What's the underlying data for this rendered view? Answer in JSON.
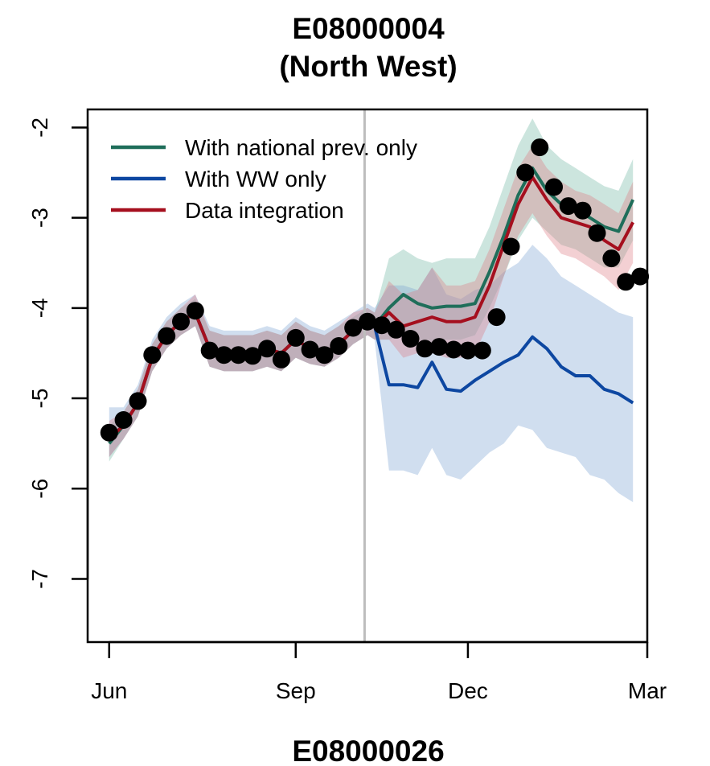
{
  "chart_data": {
    "type": "line",
    "title_line1": "E08000004",
    "title_line2": "(North West)",
    "next_panel_title": "E08000026",
    "xlabel": "",
    "ylabel": "",
    "x_ticks": [
      {
        "label": "Jun",
        "week": 0
      },
      {
        "label": "Sep",
        "week": 13
      },
      {
        "label": "Dec",
        "week": 25
      },
      {
        "label": "Mar",
        "week": 37.5
      }
    ],
    "y_ticks": [
      -7,
      -6,
      -5,
      -4,
      -3,
      -2
    ],
    "y_tick_labels": [
      "-7",
      "-6",
      "-5",
      "-4",
      "-3",
      "-2"
    ],
    "xlim": [
      -1.5,
      37.5
    ],
    "ylim": [
      -7.7,
      -1.8
    ],
    "forecast_start_week": 17.8,
    "forecast_line_color": "#bdbdbd",
    "legend_position": "top-left",
    "series": [
      {
        "name": "With national prev. only",
        "color": "#1f6e5a",
        "band_color": "rgba(110,180,160,0.35)",
        "x": [
          0,
          1,
          2,
          3,
          4,
          5,
          6,
          7,
          8,
          9,
          10,
          11,
          12,
          13,
          14,
          15,
          16,
          17,
          18,
          18.5,
          19.5,
          20.5,
          21.5,
          22.5,
          23.5,
          24.5,
          25.5,
          26.5,
          27.5,
          28.5,
          29.5,
          30.5,
          31.5,
          32.5,
          33.5,
          34.5,
          35.5,
          36.5
        ],
        "values": [
          -5.5,
          -5.3,
          -5.05,
          -4.55,
          -4.3,
          -4.15,
          -4.05,
          -4.45,
          -4.5,
          -4.5,
          -4.5,
          -4.45,
          -4.5,
          -4.35,
          -4.45,
          -4.5,
          -4.4,
          -4.25,
          -4.15,
          -4.2,
          -4.0,
          -3.85,
          -3.95,
          -4.0,
          -3.98,
          -3.98,
          -3.95,
          -3.6,
          -3.2,
          -2.75,
          -2.45,
          -2.7,
          -2.85,
          -2.9,
          -3.0,
          -3.1,
          -3.15,
          -2.8
        ],
        "lower": [
          -5.7,
          -5.45,
          -5.2,
          -4.7,
          -4.45,
          -4.3,
          -4.2,
          -4.65,
          -4.7,
          -4.7,
          -4.7,
          -4.65,
          -4.7,
          -4.55,
          -4.62,
          -4.65,
          -4.55,
          -4.4,
          -4.3,
          -4.35,
          -4.35,
          -4.3,
          -4.35,
          -4.4,
          -4.35,
          -4.35,
          -4.3,
          -4.0,
          -3.65,
          -3.25,
          -3.0,
          -3.15,
          -3.3,
          -3.35,
          -3.45,
          -3.55,
          -3.55,
          -3.25
        ],
        "upper": [
          -5.3,
          -5.15,
          -4.9,
          -4.4,
          -4.15,
          -4.0,
          -3.9,
          -4.25,
          -4.3,
          -4.3,
          -4.3,
          -4.25,
          -4.3,
          -4.15,
          -4.25,
          -4.3,
          -4.2,
          -4.1,
          -4.0,
          -4.05,
          -3.45,
          -3.35,
          -3.45,
          -3.5,
          -3.45,
          -3.45,
          -3.45,
          -3.1,
          -2.65,
          -2.2,
          -1.9,
          -2.2,
          -2.35,
          -2.45,
          -2.55,
          -2.65,
          -2.7,
          -2.35
        ]
      },
      {
        "name": "With WW only",
        "color": "#0d47a1",
        "band_color": "rgba(120,160,210,0.35)",
        "x": [
          0,
          1,
          2,
          3,
          4,
          5,
          6,
          7,
          8,
          9,
          10,
          11,
          12,
          13,
          14,
          15,
          16,
          17,
          18,
          18.5,
          19.5,
          20.5,
          21.5,
          22.5,
          23.5,
          24.5,
          25.5,
          26.5,
          27.5,
          28.5,
          29.5,
          30.5,
          31.5,
          32.5,
          33.5,
          34.5,
          35.5,
          36.5
        ],
        "values": [
          -5.45,
          -5.3,
          -5.05,
          -4.55,
          -4.3,
          -4.15,
          -4.05,
          -4.45,
          -4.5,
          -4.5,
          -4.5,
          -4.45,
          -4.5,
          -4.35,
          -4.45,
          -4.5,
          -4.4,
          -4.25,
          -4.15,
          -4.2,
          -4.85,
          -4.85,
          -4.88,
          -4.6,
          -4.9,
          -4.92,
          -4.8,
          -4.7,
          -4.6,
          -4.52,
          -4.32,
          -4.45,
          -4.65,
          -4.75,
          -4.75,
          -4.9,
          -4.95,
          -5.05
        ],
        "lower": [
          -5.65,
          -5.45,
          -5.2,
          -4.7,
          -4.45,
          -4.3,
          -4.2,
          -4.65,
          -4.7,
          -4.7,
          -4.7,
          -4.65,
          -4.7,
          -4.55,
          -4.62,
          -4.65,
          -4.55,
          -4.4,
          -4.3,
          -4.35,
          -5.8,
          -5.8,
          -5.85,
          -5.55,
          -5.85,
          -5.9,
          -5.75,
          -5.6,
          -5.5,
          -5.3,
          -5.35,
          -5.55,
          -5.6,
          -5.65,
          -5.85,
          -5.9,
          -6.05,
          -6.15
        ],
        "upper": [
          -5.1,
          -5.1,
          -4.85,
          -4.35,
          -4.1,
          -3.95,
          -3.85,
          -4.2,
          -4.25,
          -4.25,
          -4.25,
          -4.2,
          -4.25,
          -4.1,
          -4.2,
          -4.25,
          -4.15,
          -4.05,
          -3.95,
          -4.0,
          -3.75,
          -3.75,
          -3.8,
          -3.55,
          -3.85,
          -3.9,
          -3.8,
          -3.75,
          -3.6,
          -3.5,
          -3.3,
          -3.45,
          -3.65,
          -3.75,
          -3.85,
          -3.95,
          -4.05,
          -4.1
        ]
      },
      {
        "name": "Data integration",
        "color": "#a50f1e",
        "band_color": "rgba(220,120,130,0.35)",
        "x": [
          0,
          1,
          2,
          3,
          4,
          5,
          6,
          7,
          8,
          9,
          10,
          11,
          12,
          13,
          14,
          15,
          16,
          17,
          18,
          18.5,
          19.5,
          20.5,
          21.5,
          22.5,
          23.5,
          24.5,
          25.5,
          26.5,
          27.5,
          28.5,
          29.5,
          30.5,
          31.5,
          32.5,
          33.5,
          34.5,
          35.5,
          36.5
        ],
        "values": [
          -5.45,
          -5.3,
          -5.05,
          -4.55,
          -4.3,
          -4.15,
          -4.05,
          -4.45,
          -4.5,
          -4.5,
          -4.5,
          -4.45,
          -4.5,
          -4.35,
          -4.45,
          -4.5,
          -4.4,
          -4.25,
          -4.15,
          -4.2,
          -4.05,
          -4.2,
          -4.15,
          -4.1,
          -4.15,
          -4.15,
          -4.1,
          -3.75,
          -3.3,
          -2.85,
          -2.55,
          -2.8,
          -3.0,
          -3.05,
          -3.1,
          -3.25,
          -3.35,
          -3.05
        ],
        "lower": [
          -5.65,
          -5.45,
          -5.2,
          -4.7,
          -4.45,
          -4.3,
          -4.2,
          -4.65,
          -4.7,
          -4.7,
          -4.7,
          -4.65,
          -4.7,
          -4.55,
          -4.62,
          -4.65,
          -4.55,
          -4.4,
          -4.3,
          -4.35,
          -4.35,
          -4.55,
          -4.5,
          -4.5,
          -4.55,
          -4.55,
          -4.5,
          -4.15,
          -3.65,
          -3.2,
          -2.95,
          -3.2,
          -3.4,
          -3.45,
          -3.55,
          -3.65,
          -3.8,
          -3.5
        ],
        "upper": [
          -5.25,
          -5.15,
          -4.9,
          -4.4,
          -4.15,
          -4.0,
          -3.85,
          -4.25,
          -4.3,
          -4.3,
          -4.3,
          -4.25,
          -4.3,
          -4.15,
          -4.25,
          -4.3,
          -4.2,
          -4.05,
          -4.0,
          -4.05,
          -3.7,
          -3.85,
          -3.8,
          -3.55,
          -3.75,
          -3.75,
          -3.7,
          -3.35,
          -2.9,
          -2.45,
          -2.2,
          -2.45,
          -2.6,
          -2.7,
          -2.75,
          -2.85,
          -2.95,
          -2.6
        ]
      }
    ],
    "observations": {
      "color": "#000000",
      "x": [
        0,
        1,
        2,
        3,
        4,
        5,
        6,
        7,
        8,
        9,
        10,
        11,
        12,
        13,
        14,
        15,
        16,
        17,
        18,
        19,
        20,
        21,
        22,
        23,
        24,
        25,
        26,
        27,
        28,
        29,
        30,
        31,
        32,
        33,
        34,
        35,
        36,
        37
      ],
      "values": [
        -5.38,
        -5.24,
        -5.03,
        -4.52,
        -4.31,
        -4.15,
        -4.03,
        -4.47,
        -4.52,
        -4.52,
        -4.53,
        -4.45,
        -4.57,
        -4.33,
        -4.46,
        -4.52,
        -4.42,
        -4.22,
        -4.15,
        -4.19,
        -4.24,
        -4.34,
        -4.45,
        -4.43,
        -4.46,
        -4.47,
        -4.47,
        -4.1,
        -3.32,
        -2.5,
        -2.22,
        -2.66,
        -2.87,
        -2.92,
        -3.17,
        -3.45,
        -3.71,
        -3.65
      ]
    }
  }
}
